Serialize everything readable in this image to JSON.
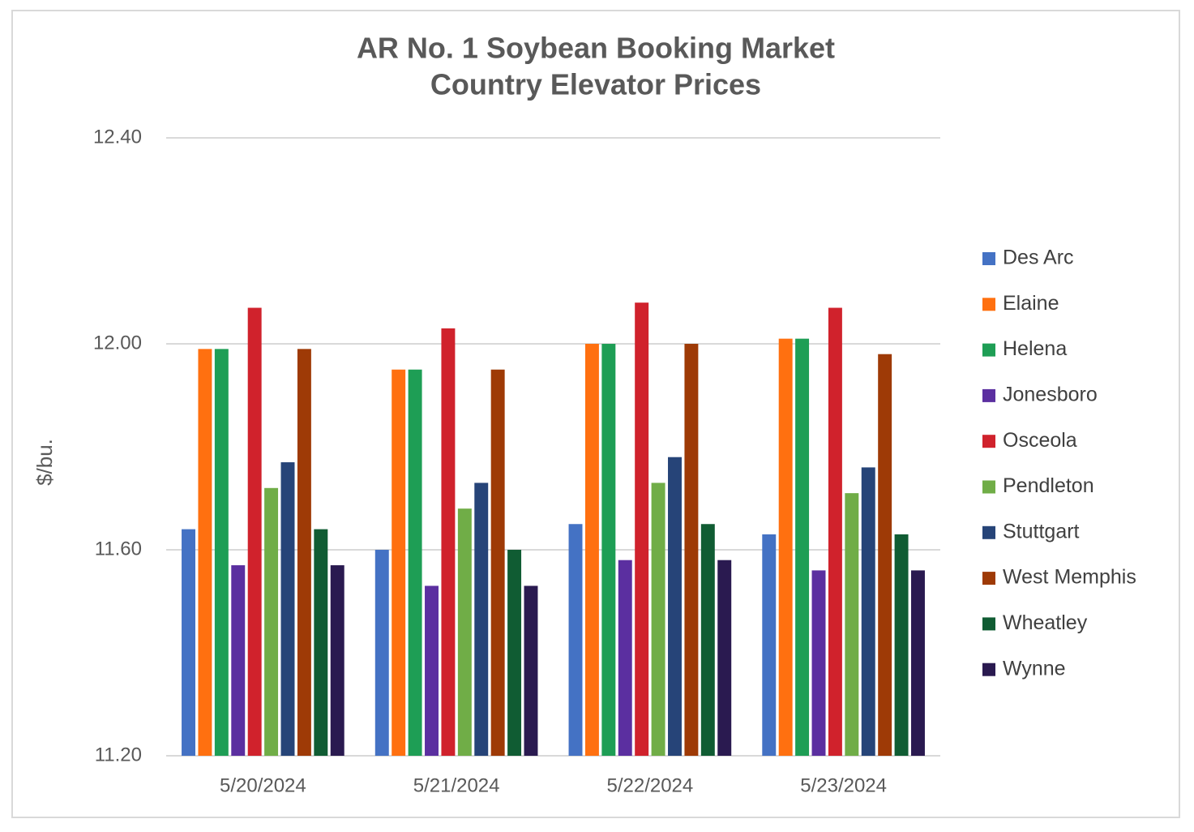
{
  "chart_data": {
    "type": "bar",
    "title": "AR No. 1 Soybean Booking Market",
    "subtitle": "Country Elevator Prices",
    "y_label": "$/bu.",
    "categories": [
      "5/20/2024",
      "5/21/2024",
      "5/22/2024",
      "5/23/2024"
    ],
    "series": [
      {
        "name": "Des Arc",
        "color": "#4472c4",
        "values": [
          11.64,
          11.6,
          11.65,
          11.63
        ]
      },
      {
        "name": "Elaine",
        "color": "#ff7010",
        "values": [
          11.99,
          11.95,
          12.0,
          12.01
        ]
      },
      {
        "name": "Helena",
        "color": "#1e9e55",
        "values": [
          11.99,
          11.95,
          12.0,
          12.01
        ]
      },
      {
        "name": "Jonesboro",
        "color": "#5b2fa0",
        "values": [
          11.57,
          11.53,
          11.58,
          11.56
        ]
      },
      {
        "name": "Osceola",
        "color": "#d0222c",
        "values": [
          12.07,
          12.03,
          12.08,
          12.07
        ]
      },
      {
        "name": "Pendleton",
        "color": "#70ad47",
        "values": [
          11.72,
          11.68,
          11.73,
          11.71
        ]
      },
      {
        "name": "Stuttgart",
        "color": "#264478",
        "values": [
          11.77,
          11.73,
          11.78,
          11.76
        ]
      },
      {
        "name": "West Memphis",
        "color": "#9e3a06",
        "values": [
          11.99,
          11.95,
          12.0,
          11.98
        ]
      },
      {
        "name": "Wheatley",
        "color": "#105c33",
        "values": [
          11.64,
          11.6,
          11.65,
          11.63
        ]
      },
      {
        "name": "Wynne",
        "color": "#2a1a50",
        "values": [
          11.57,
          11.53,
          11.58,
          11.56
        ]
      }
    ],
    "ylim": [
      11.2,
      12.4
    ],
    "yticks": [
      {
        "value": 11.2,
        "label": "11.20"
      },
      {
        "value": 11.6,
        "label": "11.60"
      },
      {
        "value": 12.0,
        "label": "12.00"
      },
      {
        "value": 12.4,
        "label": "12.40"
      }
    ],
    "grid": true,
    "legend": "right"
  }
}
